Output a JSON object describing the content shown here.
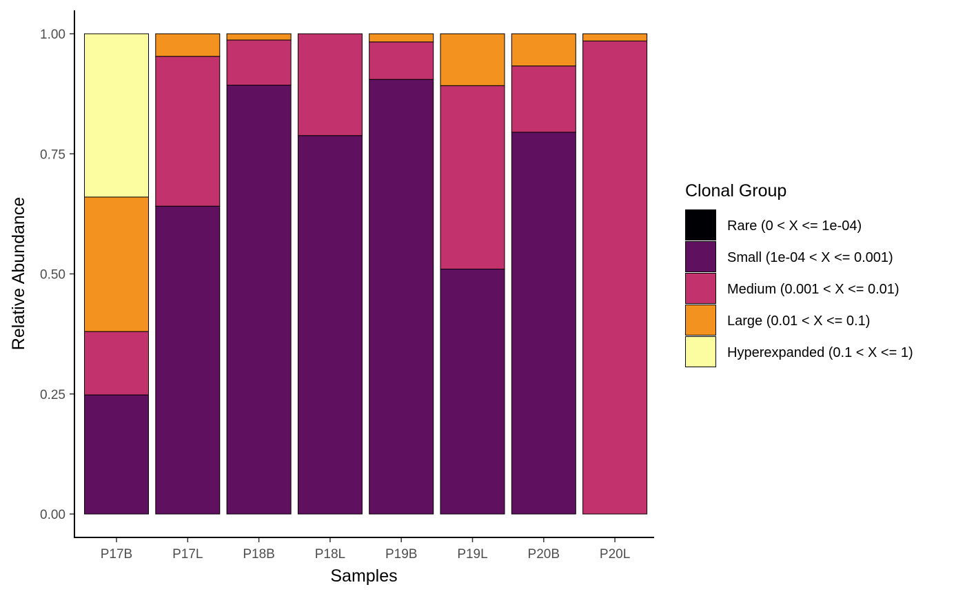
{
  "chart_data": {
    "type": "bar",
    "stacked": true,
    "title": "",
    "xlabel": "Samples",
    "ylabel": "Relative Abundance",
    "ylim": [
      0,
      1
    ],
    "yticks": [
      "0.00",
      "0.25",
      "0.50",
      "0.75",
      "1.00"
    ],
    "categories": [
      "P17B",
      "P17L",
      "P18B",
      "P18L",
      "P19B",
      "P19L",
      "P20B",
      "P20L"
    ],
    "series": [
      {
        "name": "Rare (0 < X <= 1e-04)",
        "color": "#000004",
        "values": [
          0,
          0,
          0,
          0,
          0,
          0,
          0,
          0
        ]
      },
      {
        "name": "Small (1e-04 < X <= 0.001)",
        "color": "#5F1160",
        "values": [
          0.248,
          0.641,
          0.893,
          0.788,
          0.905,
          0.51,
          0.795,
          0
        ]
      },
      {
        "name": "Medium (0.001 < X <= 0.01)",
        "color": "#C2326C",
        "values": [
          0.132,
          0.312,
          0.094,
          0.212,
          0.078,
          0.382,
          0.138,
          0.985
        ]
      },
      {
        "name": "Large (0.01 < X <= 0.1)",
        "color": "#F3921F",
        "values": [
          0.28,
          0.047,
          0.013,
          0,
          0.017,
          0.108,
          0.067,
          0.015
        ]
      },
      {
        "name": "Hyperexpanded (0.1 < X <= 1)",
        "color": "#FCFDA0",
        "values": [
          0.34,
          0,
          0,
          0,
          0,
          0,
          0,
          0
        ]
      }
    ],
    "grid": false,
    "legend_title": "Clonal Group",
    "legend_position": "right"
  }
}
